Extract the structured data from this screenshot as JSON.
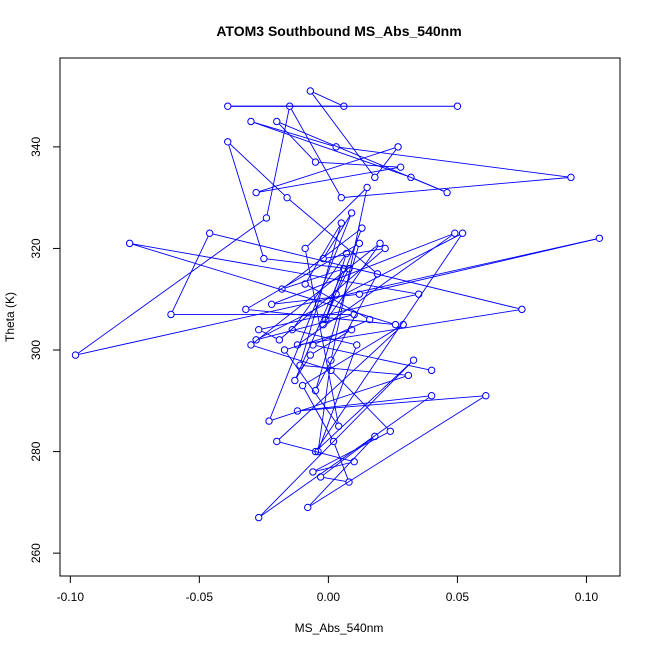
{
  "chart_data": {
    "type": "scatter",
    "mode": "points+lines",
    "title": "ATOM3 Southbound MS_Abs_540nm",
    "xlabel": "MS_Abs_540nm",
    "ylabel": "Theta (K)",
    "xlim": [
      -0.104,
      0.113
    ],
    "ylim": [
      255.5,
      357.5
    ],
    "xticks": [
      -0.1,
      -0.05,
      0.0,
      0.05,
      0.1
    ],
    "xtick_labels": [
      "-0.10",
      "-0.05",
      "0.00",
      "0.05",
      "0.10"
    ],
    "yticks": [
      260,
      280,
      300,
      320,
      340
    ],
    "ytick_labels": [
      "260",
      "280",
      "300",
      "320",
      "340"
    ],
    "grid": false,
    "series_color": "#0000ff",
    "series": [
      {
        "x": [
          0.05,
          -0.039,
          0.006,
          -0.007,
          0.018,
          0.027,
          -0.028,
          0.028,
          -0.005,
          -0.02,
          0.046,
          0.032,
          -0.03,
          0.003,
          0.094,
          0.005,
          -0.015,
          -0.024,
          -0.098,
          0.105,
          0.012,
          -0.022,
          0.049,
          -0.012,
          0.075,
          -0.046,
          -0.061,
          0.01,
          -0.028,
          0.052,
          -0.005,
          0.033,
          -0.027,
          0.04,
          -0.012,
          0.061,
          -0.008,
          0.018,
          -0.003,
          0.008,
          0.002,
          -0.01,
          0.029,
          -0.02,
          0.01,
          -0.006,
          0.024,
          0.001,
          -0.03,
          0.02,
          -0.002,
          0.013,
          -0.018,
          0.006,
          -0.013,
          -0.007,
          0.009,
          -0.017,
          0.004,
          -0.009,
          0.015,
          0.001,
          -0.004,
          0.011,
          -0.014,
          0.007,
          -0.001,
          0.003,
          0.008,
          -0.025,
          -0.039,
          -0.016,
          0.019,
          -0.005,
          0.012,
          -0.032,
          0.026,
          -0.077,
          0.035,
          -0.027,
          -0.019,
          0.022,
          -0.002,
          0.009,
          -0.023,
          0.031,
          -0.011,
          0.005,
          -0.009,
          0.016,
          -0.006,
          0.04
        ],
        "y": [
          348,
          348,
          348,
          351,
          334,
          340,
          331,
          336,
          337,
          345,
          331,
          334,
          345,
          340,
          334,
          330,
          348,
          326,
          299,
          322,
          311,
          309,
          323,
          301,
          308,
          323,
          307,
          307,
          302,
          323,
          280,
          298,
          267,
          291,
          288,
          291,
          269,
          283,
          275,
          274,
          282,
          293,
          305,
          282,
          278,
          276,
          284,
          296,
          301,
          321,
          305,
          324,
          312,
          316,
          294,
          299,
          304,
          300,
          285,
          320,
          332,
          298,
          280,
          301,
          304,
          319,
          306,
          311,
          316,
          318,
          341,
          330,
          315,
          292,
          321,
          308,
          305,
          321,
          311,
          304,
          302,
          320,
          318,
          327,
          286,
          295,
          297,
          325,
          313,
          306,
          301,
          296
        ]
      }
    ]
  }
}
